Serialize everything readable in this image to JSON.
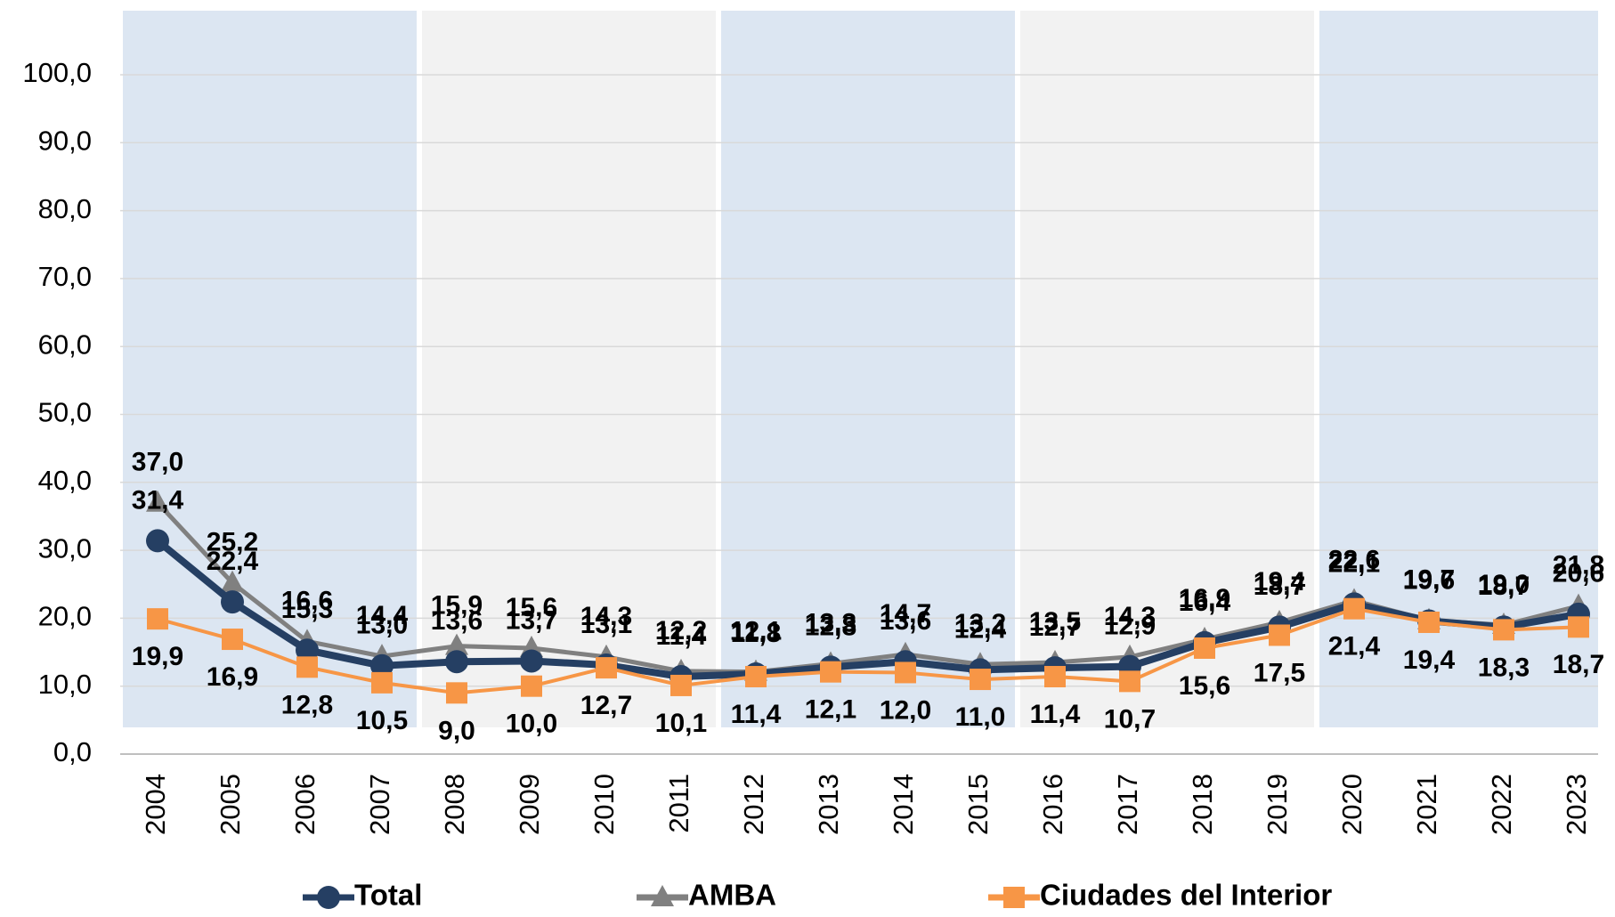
{
  "chart_data": {
    "type": "line",
    "categories": [
      "2004",
      "2005",
      "2006",
      "2007",
      "2008",
      "2009",
      "2010",
      "2011",
      "2012",
      "2013",
      "2014",
      "2015",
      "2016",
      "2017",
      "2018",
      "2019",
      "2020",
      "2021",
      "2022",
      "2023"
    ],
    "series": [
      {
        "name": "Total",
        "color": "#253f63",
        "marker": "circle",
        "values": [
          31.4,
          22.4,
          15.3,
          13.0,
          13.6,
          13.7,
          13.1,
          11.4,
          11.8,
          12.8,
          13.6,
          12.4,
          12.7,
          12.9,
          16.4,
          18.7,
          22.1,
          19.6,
          18.7,
          20.6
        ],
        "value_labels": [
          "31,4",
          "22,4",
          "15,3",
          "13,0",
          "13,6",
          "13,7",
          "13,1",
          "11,4",
          "11,8",
          "12,8",
          "13,6",
          "12,4",
          "12,7",
          "12,9",
          "16,4",
          "18,7",
          "22,1",
          "19,6",
          "18,7",
          "20,6"
        ]
      },
      {
        "name": "AMBA",
        "color": "#808080",
        "marker": "triangle",
        "values": [
          37.0,
          25.2,
          16.6,
          14.4,
          15.9,
          15.6,
          14.3,
          12.2,
          12.1,
          13.3,
          14.7,
          13.2,
          13.5,
          14.3,
          16.9,
          19.4,
          22.6,
          19.7,
          19.0,
          21.8
        ],
        "value_labels": [
          "37,0",
          "25,2",
          "16,6",
          "14,4",
          "15,9",
          "15,6",
          "14,3",
          "12,2",
          "12,1",
          "13,3",
          "14,7",
          "13,2",
          "13,5",
          "14,3",
          "16,9",
          "19,4",
          "22,6",
          "19,7",
          "19,0",
          "21,8"
        ]
      },
      {
        "name": "Ciudades del Interior",
        "color": "#f79646",
        "marker": "square",
        "values": [
          19.9,
          16.9,
          12.8,
          10.5,
          9.0,
          10.0,
          12.7,
          10.1,
          11.4,
          12.1,
          12.0,
          11.0,
          11.4,
          10.7,
          15.6,
          17.5,
          21.4,
          19.4,
          18.3,
          18.7
        ],
        "value_labels": [
          "19,9",
          "16,9",
          "12,8",
          "10,5",
          "9,0",
          "10,0",
          "12,7",
          "10,1",
          "11,4",
          "12,1",
          "12,0",
          "11,0",
          "11,4",
          "10,7",
          "15,6",
          "17,5",
          "21,4",
          "19,4",
          "18,3",
          "18,7"
        ]
      }
    ],
    "ylim": [
      0,
      100
    ],
    "yticks": [
      {
        "value": 0,
        "label": "0,0"
      },
      {
        "value": 10,
        "label": "10,0"
      },
      {
        "value": 20,
        "label": "20,0"
      },
      {
        "value": 30,
        "label": "30,0"
      },
      {
        "value": 40,
        "label": "40,0"
      },
      {
        "value": 50,
        "label": "50,0"
      },
      {
        "value": 60,
        "label": "60,0"
      },
      {
        "value": 70,
        "label": "70,0"
      },
      {
        "value": 80,
        "label": "80,0"
      },
      {
        "value": 90,
        "label": "90,0"
      },
      {
        "value": 100,
        "label": "100,0"
      }
    ],
    "grid": true,
    "legend": "bottom"
  }
}
